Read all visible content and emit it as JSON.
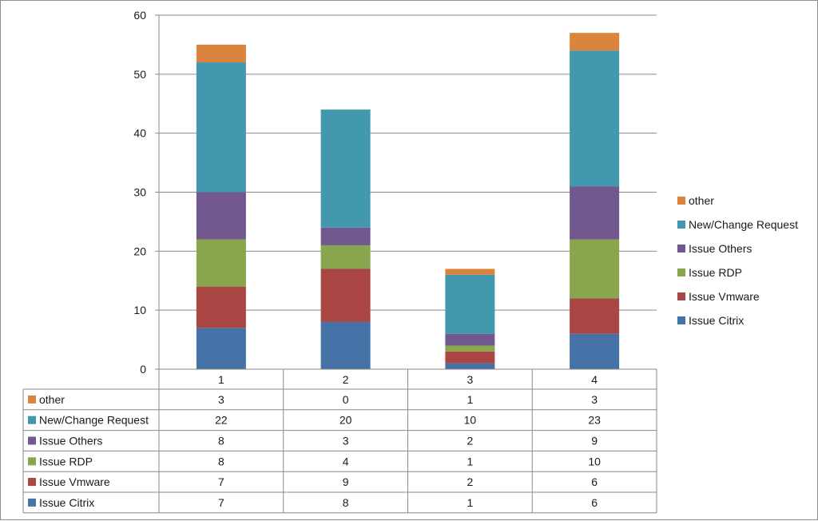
{
  "chart_data": {
    "type": "bar",
    "stacked": true,
    "categories": [
      "1",
      "2",
      "3",
      "4"
    ],
    "series": [
      {
        "name": "Issue Citrix",
        "color": "#4572a7",
        "values": [
          7,
          8,
          1,
          6
        ]
      },
      {
        "name": "Issue Vmware",
        "color": "#aa4643",
        "values": [
          7,
          9,
          2,
          6
        ]
      },
      {
        "name": "Issue RDP",
        "color": "#89a54e",
        "values": [
          8,
          4,
          1,
          10
        ]
      },
      {
        "name": "Issue Others",
        "color": "#71588f",
        "values": [
          8,
          3,
          2,
          9
        ]
      },
      {
        "name": "New/Change Request",
        "color": "#4198af",
        "values": [
          22,
          20,
          10,
          23
        ]
      },
      {
        "name": "other",
        "color": "#db843d",
        "values": [
          3,
          0,
          1,
          3
        ]
      }
    ],
    "ylim": [
      0,
      60
    ],
    "yticks": [
      "0",
      "10",
      "20",
      "30",
      "40",
      "50",
      "60"
    ],
    "grid": true,
    "legend_position": "right",
    "data_table": true,
    "title": "",
    "xlabel": "",
    "ylabel": ""
  }
}
